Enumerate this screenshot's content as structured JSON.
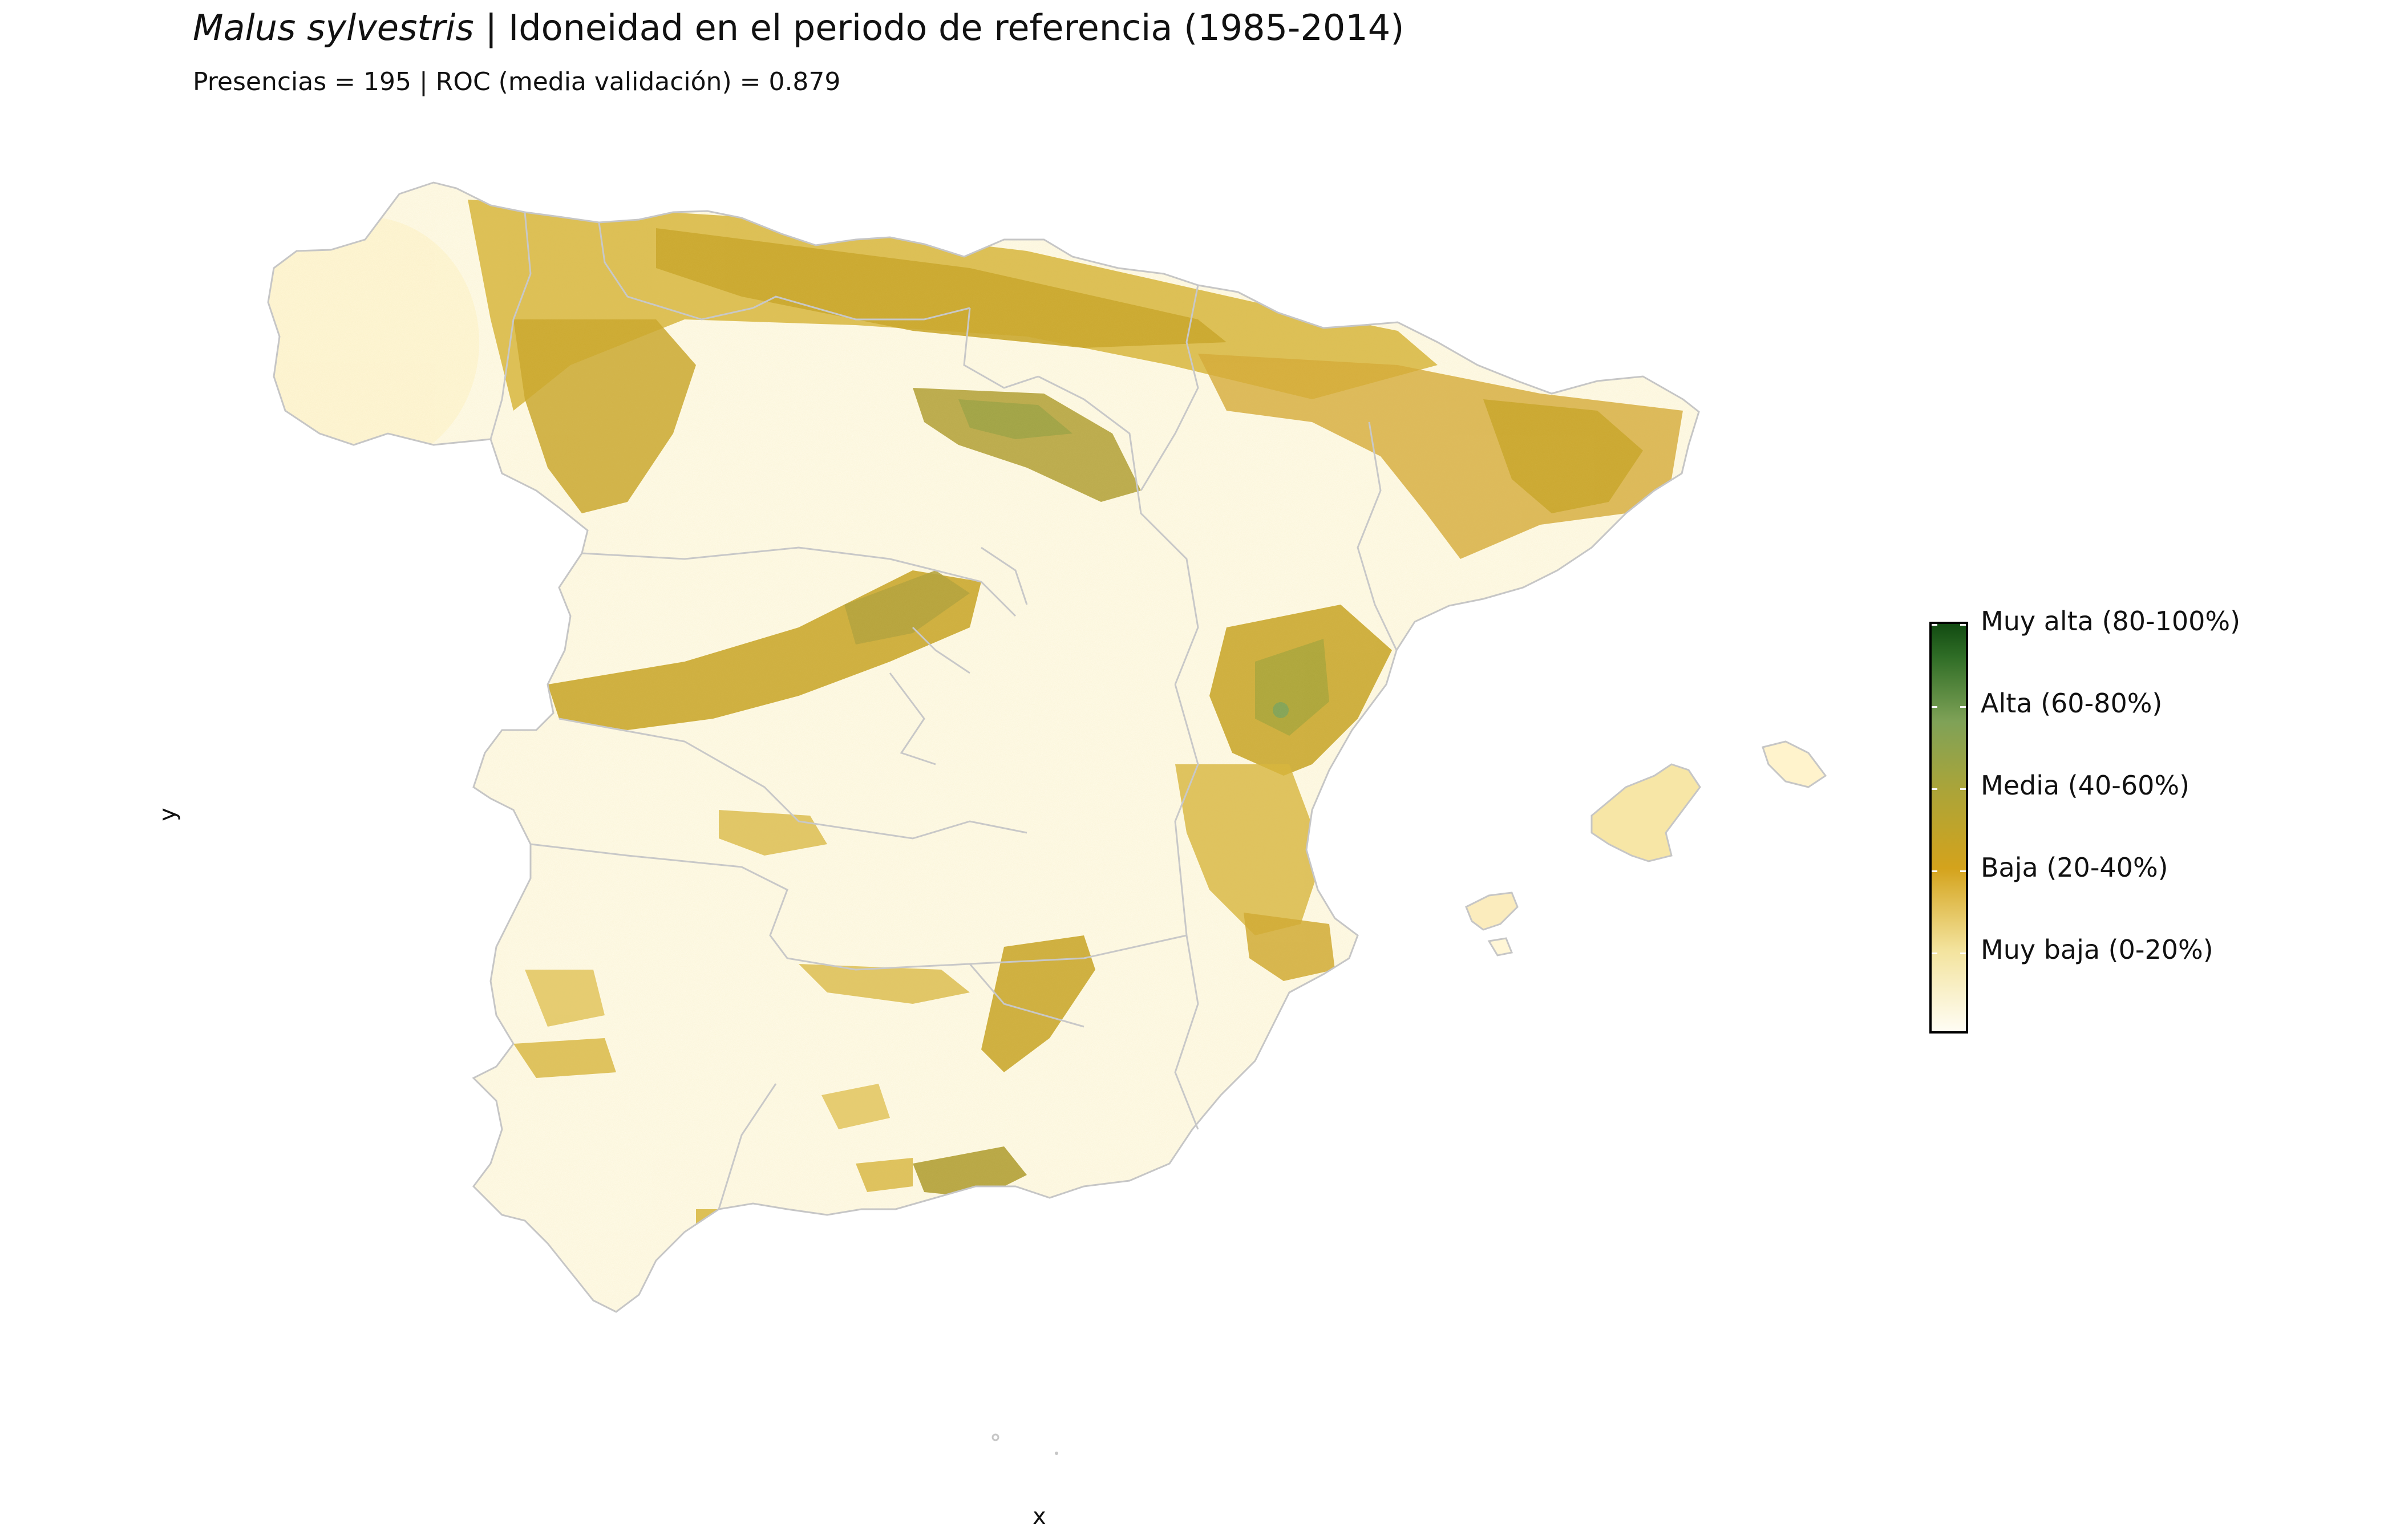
{
  "title": {
    "species": "Malus sylvestris",
    "rest": " | Idoneidad en el periodo de referencia (1985-2014)"
  },
  "subtitle": "Presencias = 195  |  ROC (media validación) = 0.879",
  "axes": {
    "x_label": "x",
    "y_label": "y"
  },
  "legend": {
    "labels": [
      "Muy alta (80-100%)",
      "Alta (60-80%)",
      "Media (40-60%)",
      "Baja (20-40%)",
      "Muy baja (0-20%)"
    ],
    "colors": [
      "#124b12",
      "#7fa257",
      "#a9a43a",
      "#d4a31c",
      "#f3e39d",
      "#fffdf4"
    ]
  },
  "map": {
    "region": "Spain (Iberian Peninsula) and Balearic Islands",
    "fill_palette": [
      "#fffbea",
      "#f6e7a8",
      "#e0c052",
      "#c9a52a",
      "#b0a13c",
      "#84a050"
    ],
    "border_color": "#c6c6c6"
  }
}
